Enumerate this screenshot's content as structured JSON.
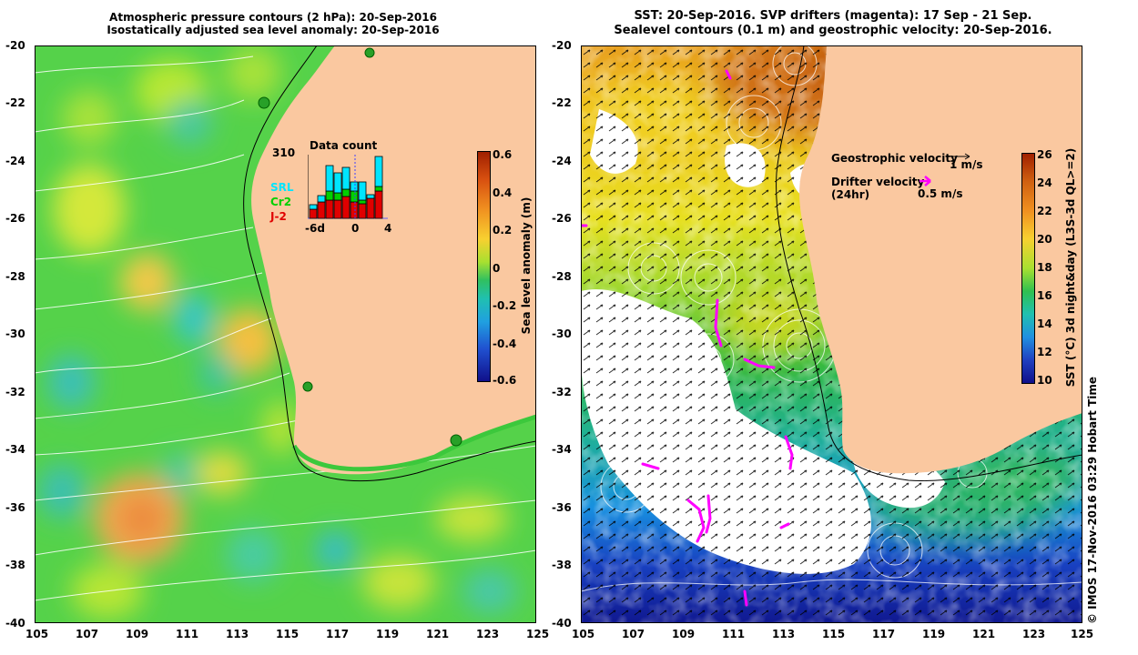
{
  "left_panel": {
    "title_line1": "Atmospheric pressure contours (2 hPa): 20-Sep-2016",
    "title_line2": "Isostatically adjusted sea level anomaly: 20-Sep-2016",
    "x_ticks": [
      "105",
      "107",
      "109",
      "111",
      "113",
      "115",
      "117",
      "119",
      "121",
      "123",
      "125"
    ],
    "y_ticks": [
      "-20",
      "-22",
      "-24",
      "-26",
      "-28",
      "-30",
      "-32",
      "-34",
      "-36",
      "-38",
      "-40"
    ],
    "colorbar": {
      "label": "Sea level anomaly (m)",
      "ticks": [
        "0.6",
        "0.4",
        "0.2",
        "0",
        "-0.2",
        "-0.4",
        "-0.6"
      ],
      "range": [
        -0.6,
        0.6
      ]
    },
    "inset": {
      "title": "Data count",
      "max_label": "310",
      "legend": [
        "SRL",
        "Cr2",
        "J-2"
      ],
      "legend_colors": [
        "#00e5ff",
        "#00d000",
        "#e00000"
      ],
      "x_ticks": [
        "-6d",
        "0",
        "4"
      ]
    }
  },
  "right_panel": {
    "title_line1": "SST: 20-Sep-2016. SVP drifters (magenta): 17 Sep - 21 Sep.",
    "title_line2": "Sealevel contours (0.1 m) and geostrophic velocity: 20-Sep-2016.",
    "x_ticks": [
      "105",
      "107",
      "109",
      "111",
      "113",
      "115",
      "117",
      "119",
      "121",
      "123",
      "125"
    ],
    "y_ticks": [
      "-20",
      "-22",
      "-24",
      "-26",
      "-28",
      "-30",
      "-32",
      "-34",
      "-36",
      "-38",
      "-40"
    ],
    "colorbar": {
      "label": "SST (°C) 3d night&day (L3S-3d QL>=2)",
      "ticks": [
        "26",
        "24",
        "22",
        "20",
        "18",
        "16",
        "14",
        "12",
        "10"
      ],
      "range": [
        10,
        26
      ]
    },
    "legend": {
      "geo_label": "Geostrophic velocity",
      "geo_scale": "1 m/s",
      "drifter_label": "Drifter velocity",
      "drifter_sub": "(24hr)",
      "drifter_scale": "0.5 m/s"
    }
  },
  "credit": "© IMOS 17-Nov-2016 03:29 Hobart Time",
  "colors": {
    "land": "#fac8a0",
    "drifter": "#ff00ff",
    "slope_line": "#000000"
  }
}
